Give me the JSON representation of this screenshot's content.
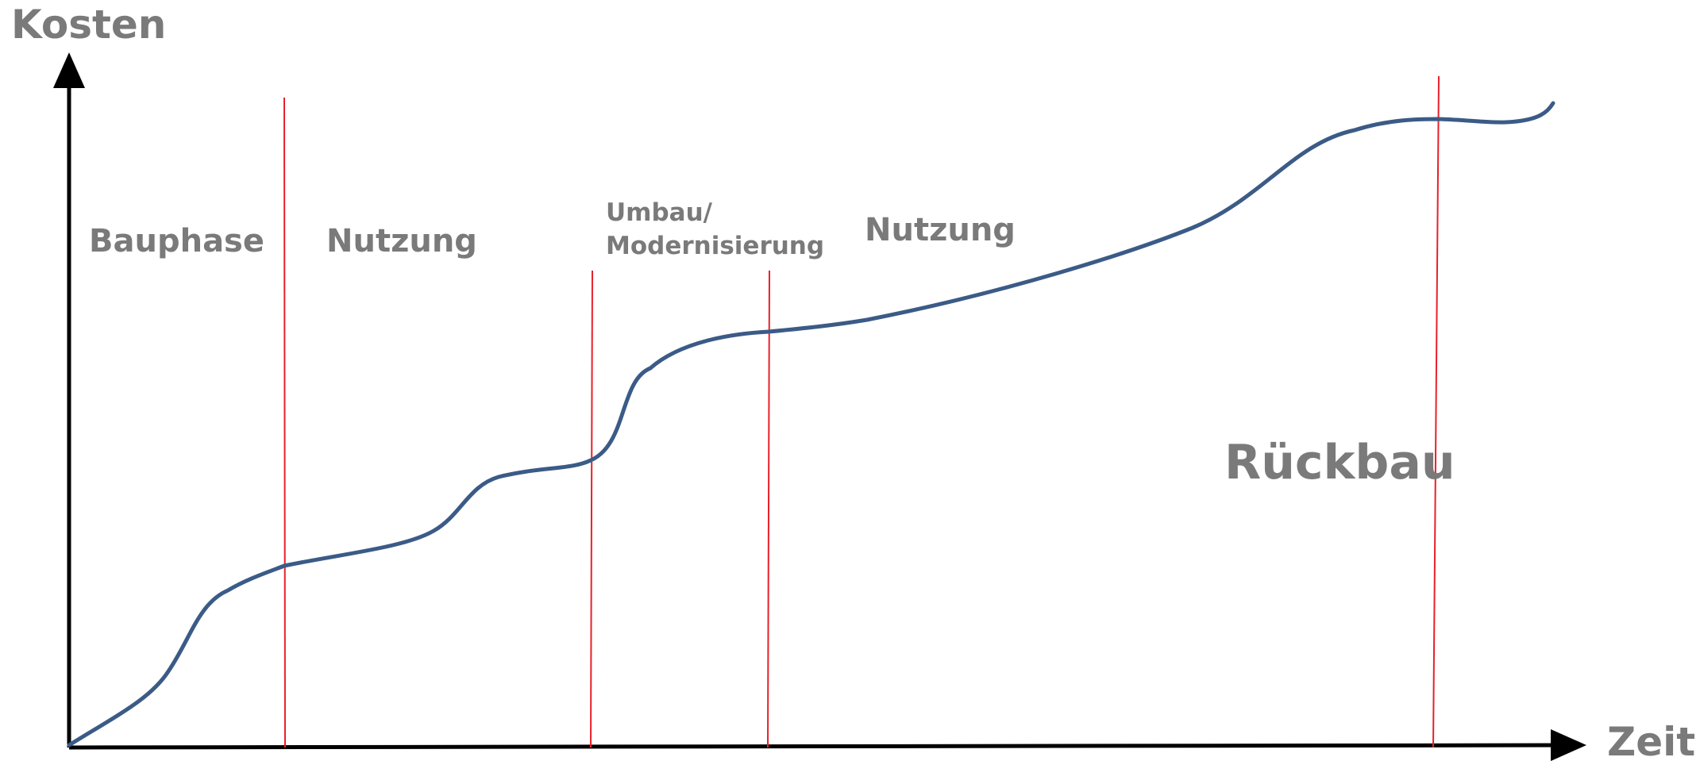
{
  "axes": {
    "y_label": "Kosten",
    "x_label": "Zeit"
  },
  "phases": [
    {
      "label": "Bauphase"
    },
    {
      "label": "Nutzung"
    },
    {
      "label_lines": [
        "Umbau/",
        "Modernisierung"
      ]
    },
    {
      "label": "Nutzung"
    },
    {
      "label": "Rückbau"
    }
  ]
}
